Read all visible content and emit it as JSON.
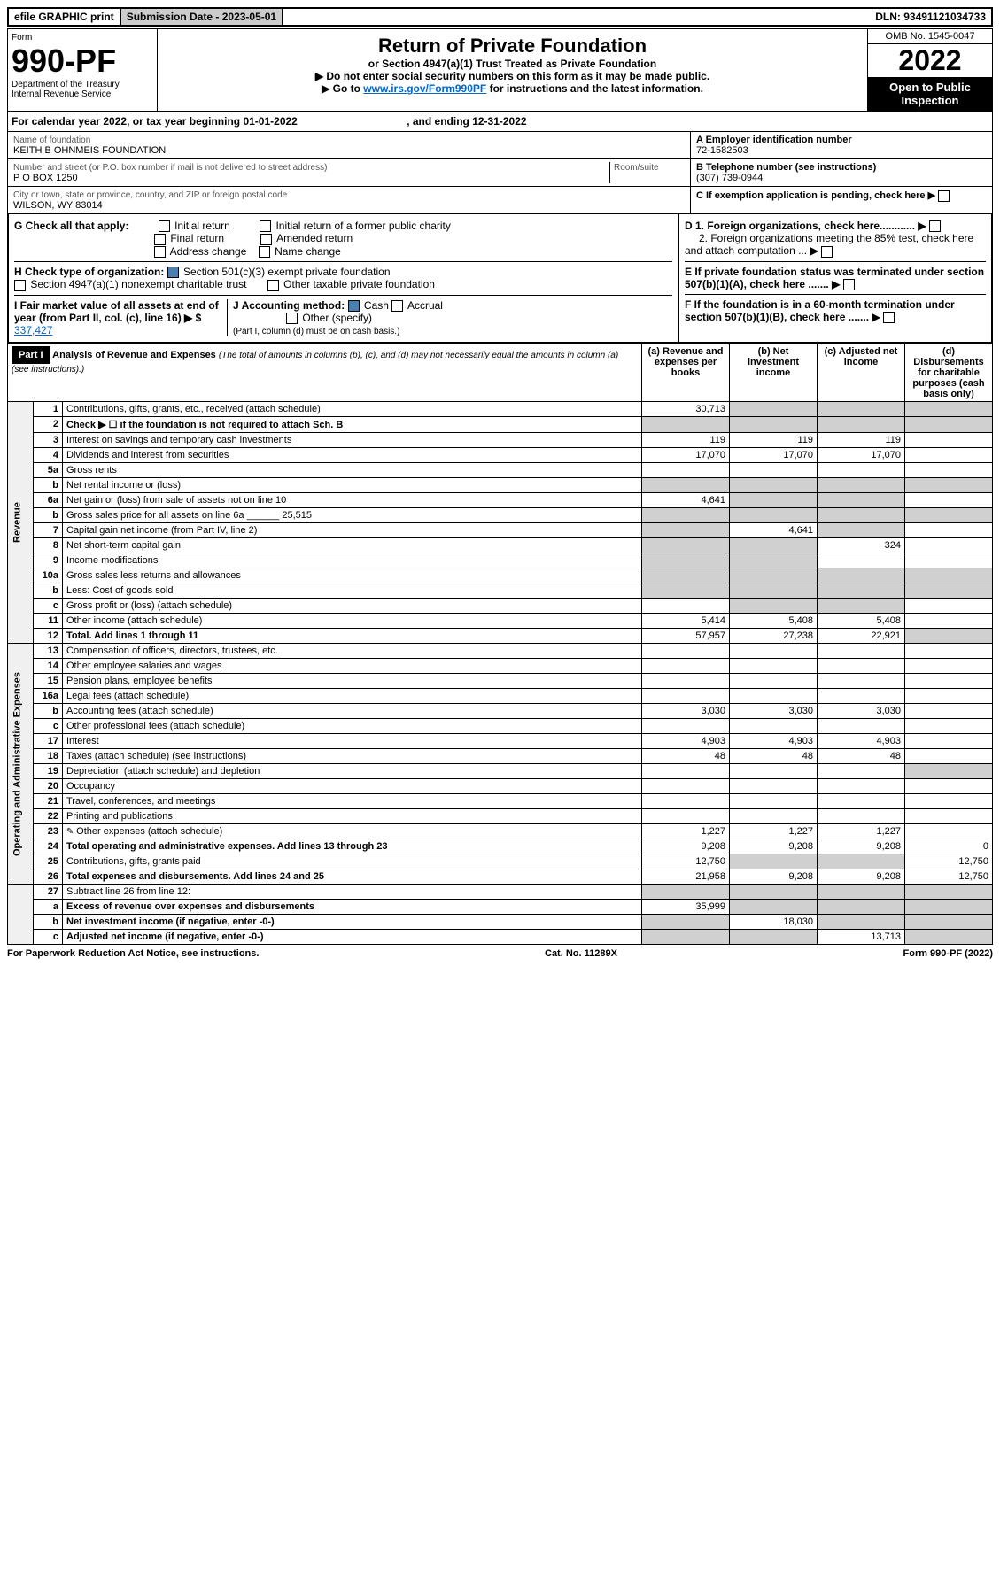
{
  "topbar": {
    "efile": "efile GRAPHIC print",
    "subdate_label": "Submission Date - ",
    "subdate": "2023-05-01",
    "dln_label": "DLN: ",
    "dln": "93491121034733"
  },
  "hdr": {
    "form_label": "Form",
    "form_no": "990-PF",
    "dept": "Department of the Treasury",
    "irs": "Internal Revenue Service",
    "title": "Return of Private Foundation",
    "subtitle": "or Section 4947(a)(1) Trust Treated as Private Foundation",
    "note1": "▶ Do not enter social security numbers on this form as it may be made public.",
    "note2_pre": "▶ Go to ",
    "note2_link": "www.irs.gov/Form990PF",
    "note2_post": " for instructions and the latest information.",
    "omb": "OMB No. 1545-0047",
    "year": "2022",
    "open": "Open to Public Inspection"
  },
  "calyr": {
    "pre": "For calendar year 2022, or tax year beginning ",
    "start": "01-01-2022",
    "mid": ", and ending ",
    "end": "12-31-2022"
  },
  "meta": {
    "name_label": "Name of foundation",
    "name": "KEITH B OHNMEIS FOUNDATION",
    "addr_label": "Number and street (or P.O. box number if mail is not delivered to street address)",
    "addr": "P O BOX 1250",
    "room_label": "Room/suite",
    "city_label": "City or town, state or province, country, and ZIP or foreign postal code",
    "city": "WILSON, WY  83014",
    "a_label": "A Employer identification number",
    "a_val": "72-1582503",
    "b_label": "B Telephone number (see instructions)",
    "b_val": "(307) 739-0944",
    "c_label": "C If exemption application is pending, check here",
    "d1": "D 1. Foreign organizations, check here............",
    "d2": "2. Foreign organizations meeting the 85% test, check here and attach computation ...",
    "e": "E  If private foundation status was terminated under section 507(b)(1)(A), check here .......",
    "f": "F  If the foundation is in a 60-month termination under section 507(b)(1)(B), check here ......."
  },
  "g": {
    "label": "G Check all that apply:",
    "opts": [
      "Initial return",
      "Final return",
      "Address change",
      "Initial return of a former public charity",
      "Amended return",
      "Name change"
    ]
  },
  "h": {
    "label": "H Check type of organization:",
    "opt1": "Section 501(c)(3) exempt private foundation",
    "opt2": "Section 4947(a)(1) nonexempt charitable trust",
    "opt3": "Other taxable private foundation"
  },
  "i": {
    "label": "I Fair market value of all assets at end of year (from Part II, col. (c), line 16) ▶ $",
    "val": "337,427"
  },
  "j": {
    "label": "J Accounting method:",
    "cash": "Cash",
    "accrual": "Accrual",
    "other": "Other (specify)",
    "note": "(Part I, column (d) must be on cash basis.)"
  },
  "part1": {
    "bar": "Part I",
    "title": "Analysis of Revenue and Expenses",
    "title_note": "(The total of amounts in columns (b), (c), and (d) may not necessarily equal the amounts in column (a) (see instructions).)",
    "cols": {
      "a": "(a)   Revenue and expenses per books",
      "b": "(b)   Net investment income",
      "c": "(c)   Adjusted net income",
      "d": "(d)   Disbursements for charitable purposes (cash basis only)"
    }
  },
  "sections": {
    "rev": "Revenue",
    "exp": "Operating and Administrative Expenses"
  },
  "rows": [
    {
      "sec": "rev",
      "n": "1",
      "d": "Contributions, gifts, grants, etc., received (attach schedule)",
      "a": "30,713",
      "bS": true,
      "cS": true,
      "dS": true
    },
    {
      "sec": "rev",
      "n": "2",
      "d": "Check ▶ ☐ if the foundation is not required to attach Sch. B",
      "bold": true,
      "allS": true
    },
    {
      "sec": "rev",
      "n": "3",
      "d": "Interest on savings and temporary cash investments",
      "a": "119",
      "b": "119",
      "c": "119"
    },
    {
      "sec": "rev",
      "n": "4",
      "d": "Dividends and interest from securities",
      "a": "17,070",
      "b": "17,070",
      "c": "17,070"
    },
    {
      "sec": "rev",
      "n": "5a",
      "d": "Gross rents"
    },
    {
      "sec": "rev",
      "n": "b",
      "d": "Net rental income or (loss)",
      "allS": true
    },
    {
      "sec": "rev",
      "n": "6a",
      "d": "Net gain or (loss) from sale of assets not on line 10",
      "a": "4,641",
      "bS": true,
      "cS": true
    },
    {
      "sec": "rev",
      "n": "b",
      "d": "Gross sales price for all assets on line 6a ______ 25,515",
      "allS": true
    },
    {
      "sec": "rev",
      "n": "7",
      "d": "Capital gain net income (from Part IV, line 2)",
      "aS": true,
      "b": "4,641",
      "cS": true
    },
    {
      "sec": "rev",
      "n": "8",
      "d": "Net short-term capital gain",
      "aS": true,
      "bS": true,
      "c": "324"
    },
    {
      "sec": "rev",
      "n": "9",
      "d": "Income modifications",
      "aS": true,
      "bS": true
    },
    {
      "sec": "rev",
      "n": "10a",
      "d": "Gross sales less returns and allowances",
      "allS": true
    },
    {
      "sec": "rev",
      "n": "b",
      "d": "Less: Cost of goods sold",
      "allS": true
    },
    {
      "sec": "rev",
      "n": "c",
      "d": "Gross profit or (loss) (attach schedule)",
      "bS": true,
      "cS": true
    },
    {
      "sec": "rev",
      "n": "11",
      "d": "Other income (attach schedule)",
      "a": "5,414",
      "b": "5,408",
      "c": "5,408"
    },
    {
      "sec": "rev",
      "n": "12",
      "d": "Total. Add lines 1 through 11",
      "bold": true,
      "a": "57,957",
      "b": "27,238",
      "c": "22,921",
      "dS": true
    },
    {
      "sec": "exp",
      "n": "13",
      "d": "Compensation of officers, directors, trustees, etc."
    },
    {
      "sec": "exp",
      "n": "14",
      "d": "Other employee salaries and wages"
    },
    {
      "sec": "exp",
      "n": "15",
      "d": "Pension plans, employee benefits"
    },
    {
      "sec": "exp",
      "n": "16a",
      "d": "Legal fees (attach schedule)"
    },
    {
      "sec": "exp",
      "n": "b",
      "d": "Accounting fees (attach schedule)",
      "a": "3,030",
      "b": "3,030",
      "c": "3,030"
    },
    {
      "sec": "exp",
      "n": "c",
      "d": "Other professional fees (attach schedule)"
    },
    {
      "sec": "exp",
      "n": "17",
      "d": "Interest",
      "a": "4,903",
      "b": "4,903",
      "c": "4,903"
    },
    {
      "sec": "exp",
      "n": "18",
      "d": "Taxes (attach schedule) (see instructions)",
      "a": "48",
      "b": "48",
      "c": "48"
    },
    {
      "sec": "exp",
      "n": "19",
      "d": "Depreciation (attach schedule) and depletion",
      "dS": true
    },
    {
      "sec": "exp",
      "n": "20",
      "d": "Occupancy"
    },
    {
      "sec": "exp",
      "n": "21",
      "d": "Travel, conferences, and meetings"
    },
    {
      "sec": "exp",
      "n": "22",
      "d": "Printing and publications"
    },
    {
      "sec": "exp",
      "n": "23",
      "d": "Other expenses (attach schedule)",
      "pencil": true,
      "a": "1,227",
      "b": "1,227",
      "c": "1,227"
    },
    {
      "sec": "exp",
      "n": "24",
      "d": "Total operating and administrative expenses. Add lines 13 through 23",
      "bold": true,
      "a": "9,208",
      "b": "9,208",
      "c": "9,208",
      "dVal": "0"
    },
    {
      "sec": "exp",
      "n": "25",
      "d": "Contributions, gifts, grants paid",
      "a": "12,750",
      "bS": true,
      "cS": true,
      "dVal": "12,750"
    },
    {
      "sec": "exp",
      "n": "26",
      "d": "Total expenses and disbursements. Add lines 24 and 25",
      "bold": true,
      "a": "21,958",
      "b": "9,208",
      "c": "9,208",
      "dVal": "12,750"
    },
    {
      "sec": "",
      "n": "27",
      "d": "Subtract line 26 from line 12:",
      "allS": true
    },
    {
      "sec": "",
      "n": "a",
      "d": "Excess of revenue over expenses and disbursements",
      "bold": true,
      "a": "35,999",
      "bS": true,
      "cS": true,
      "dS": true
    },
    {
      "sec": "",
      "n": "b",
      "d": "Net investment income (if negative, enter -0-)",
      "bold": true,
      "aS": true,
      "b": "18,030",
      "cS": true,
      "dS": true
    },
    {
      "sec": "",
      "n": "c",
      "d": "Adjusted net income (if negative, enter -0-)",
      "bold": true,
      "aS": true,
      "bS": true,
      "c": "13,713",
      "dS": true
    }
  ],
  "footer": {
    "left": "For Paperwork Reduction Act Notice, see instructions.",
    "mid": "Cat. No. 11289X",
    "right": "Form 990-PF (2022)"
  }
}
